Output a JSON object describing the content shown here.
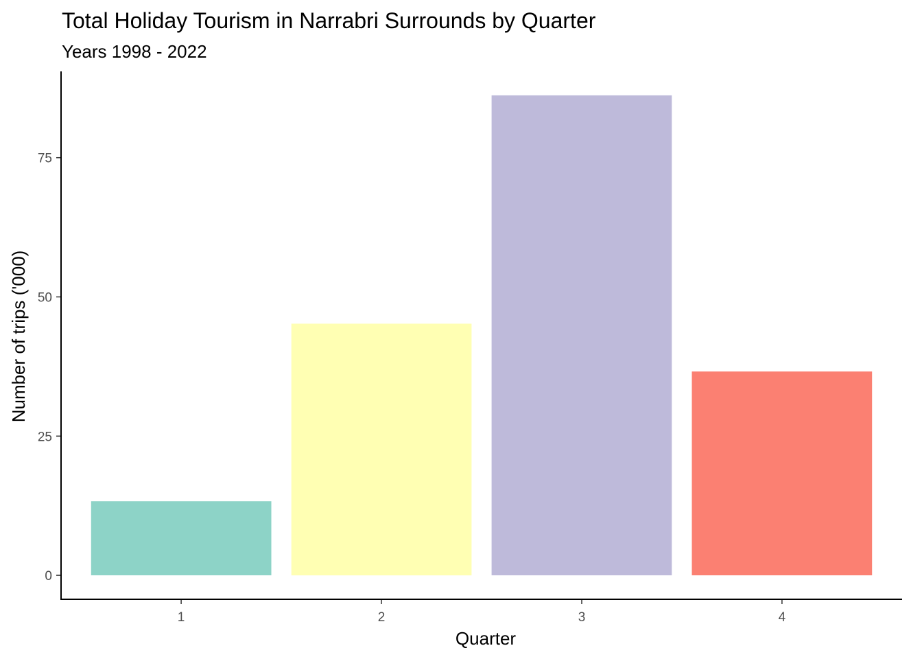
{
  "chart_data": {
    "type": "bar",
    "title": "Total Holiday Tourism in Narrabri Surrounds by Quarter",
    "subtitle": "Years 1998 - 2022",
    "xlabel": "Quarter",
    "ylabel": "Number of trips ('000)",
    "categories": [
      "1",
      "2",
      "3",
      "4"
    ],
    "values": [
      13.3,
      45.2,
      86.2,
      36.6
    ],
    "colors": [
      "#8DD3C7",
      "#FFFFB3",
      "#BEBADA",
      "#FB8072"
    ],
    "ylim": [
      -4.3,
      90.5
    ],
    "yticks": [
      0,
      25,
      50,
      75
    ],
    "ytick_labels": [
      "0",
      "25",
      "50",
      "75"
    ],
    "grid": false,
    "legend": "none"
  }
}
